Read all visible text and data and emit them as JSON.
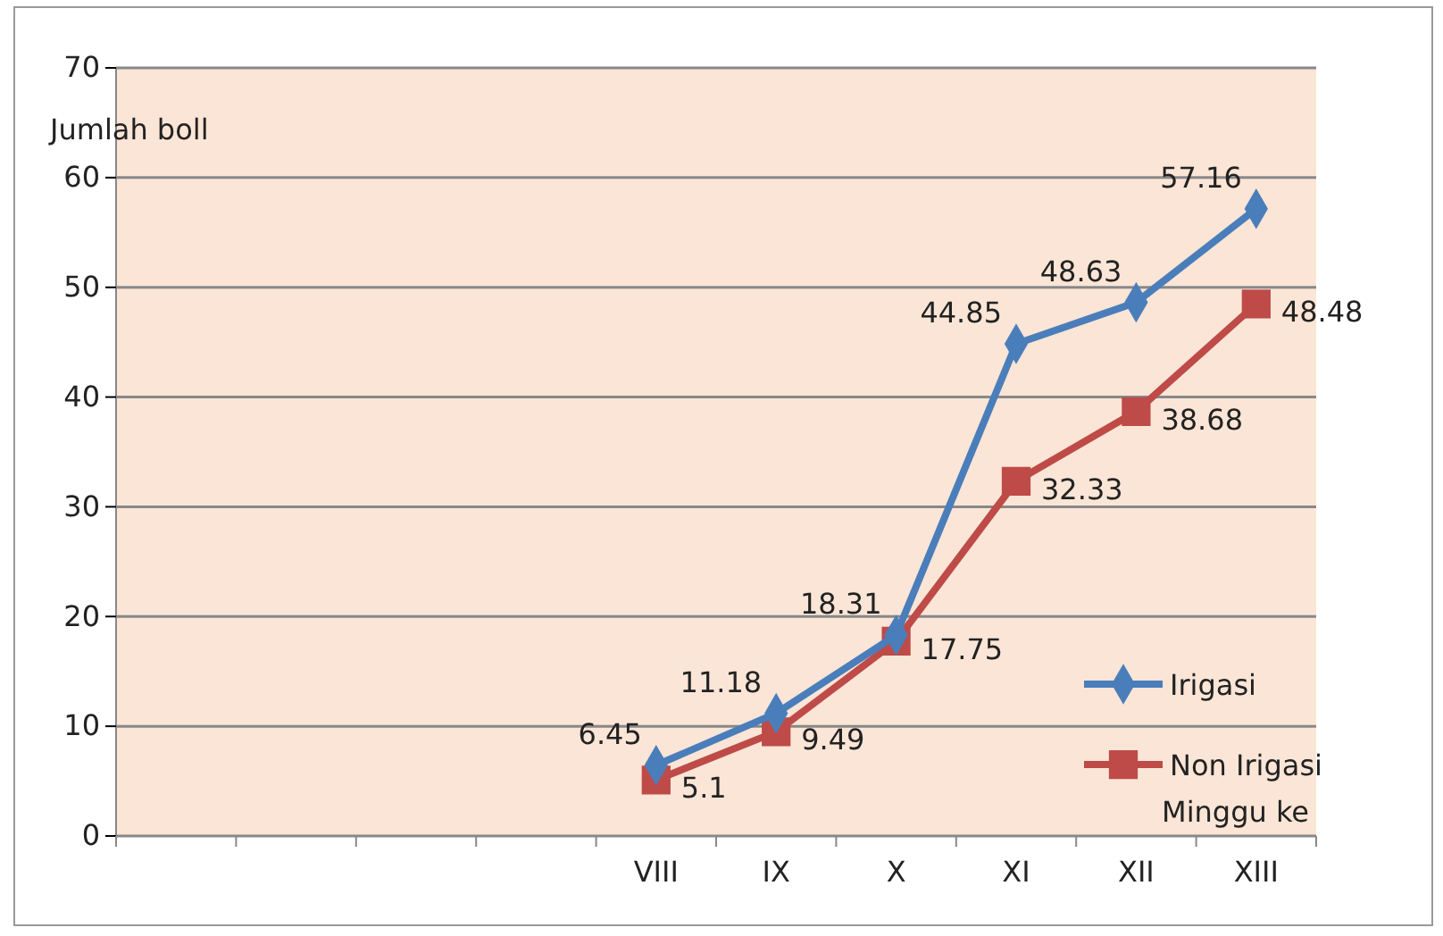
{
  "chart_data": {
    "type": "line",
    "ylabel": "Jumlah boll",
    "xlabel": "Minggu ke",
    "categories": [
      null,
      null,
      null,
      null,
      "VIII",
      "IX",
      "X",
      "XI",
      "XII",
      "XIII"
    ],
    "series": [
      {
        "name": "Irigasi",
        "color": "#4a7ebb",
        "marker": "diamond",
        "values": [
          null,
          null,
          null,
          null,
          6.45,
          11.18,
          18.31,
          44.85,
          48.63,
          57.16
        ]
      },
      {
        "name": "Non Irigasi",
        "color": "#be4b48",
        "marker": "square",
        "values": [
          null,
          null,
          null,
          null,
          5.1,
          9.49,
          17.75,
          32.33,
          38.68,
          48.48
        ]
      }
    ],
    "ylim": [
      0,
      70
    ],
    "yticks": [
      0,
      10,
      20,
      30,
      40,
      50,
      60,
      70
    ],
    "grid": "y",
    "legend": "bottom right",
    "data_labels": true
  }
}
